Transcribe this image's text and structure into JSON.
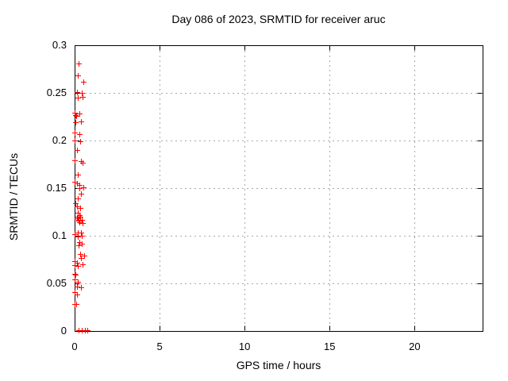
{
  "page": {
    "background": "#ffffff"
  },
  "chart_data": {
    "type": "scatter",
    "title": "Day 086 of 2023, SRMTID for receiver aruc",
    "xlabel": "GPS time / hours",
    "ylabel": "SRMTID / TECUs",
    "xlim": [
      0,
      24
    ],
    "ylim": [
      0,
      0.3
    ],
    "grid": true,
    "legend": "none",
    "marker": {
      "shape": "plus",
      "color": "#ff0000",
      "size": 7
    },
    "colors": {
      "axis": "#000000",
      "grid": "#a8a8a8",
      "text": "#000000",
      "background": "#ffffff"
    },
    "xticks": [
      {
        "value": 0,
        "label": "0"
      },
      {
        "value": 5,
        "label": "5"
      },
      {
        "value": 10,
        "label": "10"
      },
      {
        "value": 15,
        "label": "15"
      },
      {
        "value": 20,
        "label": "20"
      }
    ],
    "yticks": [
      {
        "value": 0,
        "label": "0"
      },
      {
        "value": 0.05,
        "label": "0.05"
      },
      {
        "value": 0.1,
        "label": "0.1"
      },
      {
        "value": 0.15,
        "label": "0.15"
      },
      {
        "value": 0.2,
        "label": "0.2"
      },
      {
        "value": 0.25,
        "label": "0.25"
      },
      {
        "value": 0.3,
        "label": "0.3"
      }
    ],
    "series_name": "SRMTID",
    "points": [
      [
        0.25,
        0.281
      ],
      [
        0.2,
        0.268
      ],
      [
        0.53,
        0.262
      ],
      [
        0.12,
        0.251
      ],
      [
        0.4,
        0.25
      ],
      [
        0.2,
        0.245
      ],
      [
        0.48,
        0.246
      ],
      [
        0.02,
        0.229
      ],
      [
        0.06,
        0.227
      ],
      [
        0.1,
        0.226
      ],
      [
        0.3,
        0.228
      ],
      [
        0.03,
        0.219
      ],
      [
        0.38,
        0.22
      ],
      [
        0.0,
        0.208
      ],
      [
        0.26,
        0.207
      ],
      [
        0.0,
        0.2
      ],
      [
        0.33,
        0.199
      ],
      [
        0.13,
        0.19
      ],
      [
        0.0,
        0.179
      ],
      [
        0.36,
        0.178
      ],
      [
        0.48,
        0.177
      ],
      [
        0.21,
        0.164
      ],
      [
        0.02,
        0.157
      ],
      [
        0.16,
        0.155
      ],
      [
        0.3,
        0.153
      ],
      [
        0.5,
        0.151
      ],
      [
        0.27,
        0.15
      ],
      [
        0.39,
        0.144
      ],
      [
        0.17,
        0.139
      ],
      [
        0.05,
        0.134
      ],
      [
        0.15,
        0.131
      ],
      [
        0.34,
        0.129
      ],
      [
        0.17,
        0.124
      ],
      [
        0.28,
        0.122
      ],
      [
        0.2,
        0.12
      ],
      [
        0.32,
        0.12
      ],
      [
        0.14,
        0.118
      ],
      [
        0.25,
        0.117
      ],
      [
        0.42,
        0.117
      ],
      [
        0.22,
        0.116
      ],
      [
        0.3,
        0.114
      ],
      [
        0.45,
        0.113
      ],
      [
        0.0,
        0.102
      ],
      [
        0.19,
        0.103
      ],
      [
        0.38,
        0.103
      ],
      [
        0.21,
        0.099
      ],
      [
        0.43,
        0.1
      ],
      [
        0.27,
        0.093
      ],
      [
        0.44,
        0.092
      ],
      [
        0.22,
        0.09
      ],
      [
        0.35,
        0.081
      ],
      [
        0.58,
        0.079
      ],
      [
        0.38,
        0.077
      ],
      [
        0.0,
        0.073
      ],
      [
        0.12,
        0.072
      ],
      [
        0.0,
        0.069
      ],
      [
        0.48,
        0.07
      ],
      [
        0.2,
        0.068
      ],
      [
        0.0,
        0.06
      ],
      [
        0.05,
        0.059
      ],
      [
        0.0,
        0.054
      ],
      [
        0.17,
        0.052
      ],
      [
        0.16,
        0.047
      ],
      [
        0.38,
        0.046
      ],
      [
        0.0,
        0.041
      ],
      [
        0.13,
        0.038
      ],
      [
        0.0,
        0.028
      ],
      [
        0.1,
        0.028
      ],
      [
        0.25,
        0.001
      ],
      [
        0.4,
        0.001
      ],
      [
        0.62,
        0.001
      ],
      [
        0.76,
        0.001
      ]
    ]
  }
}
